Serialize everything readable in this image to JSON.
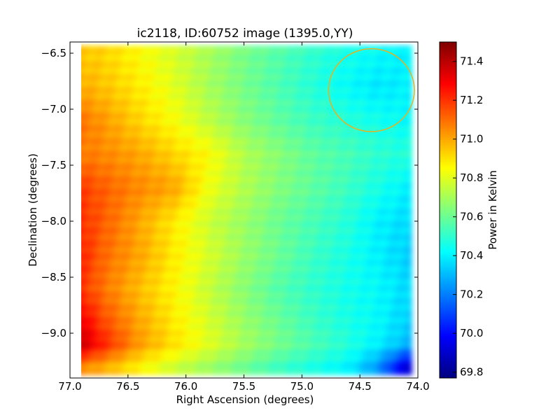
{
  "chart_data": {
    "type": "heatmap",
    "title": "ic2118, ID:60752 image (1395.0,YY)",
    "xlabel": "Right Ascension (degrees)",
    "ylabel": "Declination (degrees)",
    "xlim": [
      77.0,
      74.0
    ],
    "ylim": [
      -9.4,
      -6.4
    ],
    "x_ticks": [
      77.0,
      76.5,
      76.0,
      75.5,
      75.0,
      74.5,
      74.0
    ],
    "x_tick_labels": [
      "77.0",
      "76.5",
      "76.0",
      "75.5",
      "75.0",
      "74.5",
      "74.0"
    ],
    "y_ticks": [
      -6.5,
      -7.0,
      -7.5,
      -8.0,
      -8.5,
      -9.0
    ],
    "y_tick_labels": [
      "−6.5",
      "−7.0",
      "−7.5",
      "−8.0",
      "−8.5",
      "−9.0"
    ],
    "colorbar": {
      "label": "Power in Kelvin",
      "range": [
        69.77,
        71.5
      ],
      "ticks": [
        69.8,
        70.0,
        70.2,
        70.4,
        70.6,
        70.8,
        71.0,
        71.2,
        71.4
      ],
      "tick_labels": [
        "69.8",
        "70.0",
        "70.2",
        "70.4",
        "70.6",
        "70.8",
        "71.0",
        "71.2",
        "71.4"
      ],
      "colormap": "jet"
    },
    "grid": false,
    "circle": {
      "ra": 74.4,
      "dec": -6.83,
      "radius_deg": 0.37,
      "color": "#e8b020"
    },
    "ra_values": [
      76.95,
      76.7,
      76.4,
      76.1,
      75.8,
      75.5,
      75.2,
      74.9,
      74.6,
      74.35,
      74.1
    ],
    "dec_values": [
      -6.5,
      -6.8,
      -7.1,
      -7.4,
      -7.7,
      -8.0,
      -8.3,
      -8.6,
      -8.9,
      -9.1,
      -9.3
    ],
    "values": [
      [
        70.95,
        70.92,
        70.85,
        70.78,
        70.7,
        70.62,
        70.56,
        70.5,
        70.45,
        70.42,
        70.4
      ],
      [
        71.0,
        70.95,
        70.88,
        70.8,
        70.7,
        70.62,
        70.55,
        70.48,
        70.42,
        70.38,
        70.4
      ],
      [
        71.1,
        71.02,
        70.92,
        70.84,
        70.74,
        70.65,
        70.58,
        70.52,
        70.48,
        70.45,
        70.42
      ],
      [
        71.08,
        71.05,
        71.0,
        70.92,
        70.85,
        70.72,
        70.65,
        70.58,
        70.54,
        70.5,
        70.48
      ],
      [
        71.2,
        71.12,
        71.05,
        71.0,
        70.82,
        70.72,
        70.64,
        70.58,
        70.52,
        70.46,
        70.4
      ],
      [
        71.22,
        71.12,
        71.0,
        70.88,
        70.76,
        70.68,
        70.6,
        70.54,
        70.48,
        70.4,
        70.36
      ],
      [
        71.25,
        71.1,
        71.0,
        70.88,
        70.78,
        70.68,
        70.6,
        70.52,
        70.46,
        70.4,
        70.34
      ],
      [
        71.22,
        71.08,
        70.96,
        70.86,
        70.75,
        70.65,
        70.56,
        70.5,
        70.45,
        70.42,
        70.36
      ],
      [
        71.35,
        71.15,
        71.0,
        70.88,
        70.78,
        70.68,
        70.6,
        70.52,
        70.46,
        70.42,
        70.34
      ],
      [
        71.42,
        71.22,
        71.02,
        70.9,
        70.8,
        70.7,
        70.62,
        70.55,
        70.48,
        70.4,
        70.3
      ],
      [
        71.05,
        70.98,
        70.86,
        70.76,
        70.68,
        70.6,
        70.52,
        70.46,
        70.4,
        70.24,
        69.9
      ]
    ]
  }
}
